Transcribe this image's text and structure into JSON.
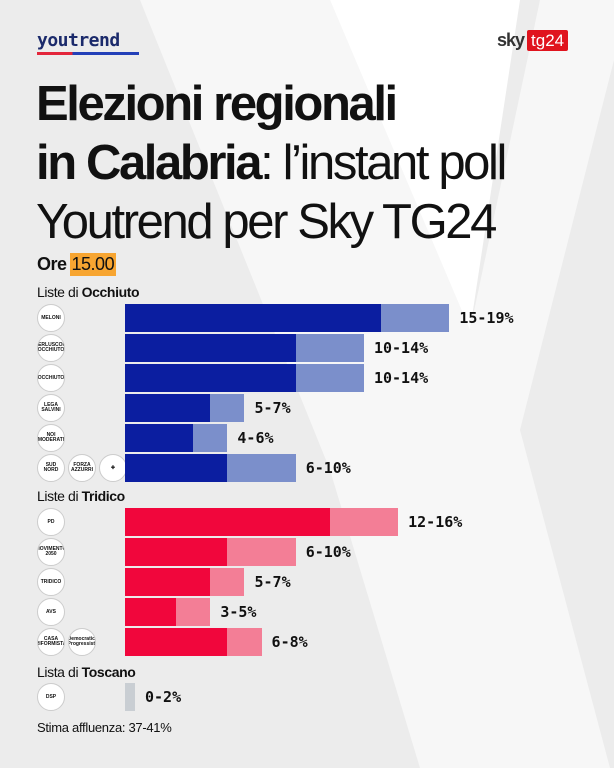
{
  "brand": {
    "left_logo": "youtrend",
    "right_logo_sky": "sky",
    "right_logo_tg": "tg24"
  },
  "title": {
    "line1": "Elezioni regionali",
    "line2_bold": "in Calabria",
    "line2_rest": ": l’instant poll",
    "line3": "Youtrend per Sky TG24"
  },
  "time": {
    "prefix": "Ore",
    "value": "15.00"
  },
  "turnout": "Stima affluenza: 37-41%",
  "colors": {
    "occhiuto_dark": "#0b1ea0",
    "occhiuto_light": "#7b8fcb",
    "tridico_dark": "#f1063c",
    "tridico_light": "#f37e96",
    "toscano": "#c9ced3",
    "time_highlight": "#f7a531"
  },
  "chart_data": {
    "type": "bar",
    "orientation": "horizontal",
    "style": "range bars (dark = lower bound, light = range up to upper bound)",
    "groups": [
      {
        "label_prefix": "Liste di",
        "label_bold": "Occhiuto",
        "color_key": "occhiuto",
        "items": [
          {
            "logos": [
              "Fratelli d'Italia – Meloni"
            ],
            "low": 15,
            "high": 19,
            "label": "15-19%"
          },
          {
            "logos": [
              "Forza Italia – Berlusconi – Occhiuto"
            ],
            "low": 10,
            "high": 14,
            "label": "10-14%"
          },
          {
            "logos": [
              "Occhiuto"
            ],
            "low": 10,
            "high": 14,
            "label": "10-14%"
          },
          {
            "logos": [
              "Lega – Salvini"
            ],
            "low": 5,
            "high": 7,
            "label": "5-7%"
          },
          {
            "logos": [
              "Noi Moderati"
            ],
            "low": 4,
            "high": 6,
            "label": "4-6%"
          },
          {
            "logos": [
              "Sud Nord",
              "Forza Azzurri",
              "UDC"
            ],
            "low": 6,
            "high": 10,
            "label": "6-10%"
          }
        ]
      },
      {
        "label_prefix": "Liste di",
        "label_bold": "Tridico",
        "color_key": "tridico",
        "items": [
          {
            "logos": [
              "PD"
            ],
            "low": 12,
            "high": 16,
            "label": "12-16%"
          },
          {
            "logos": [
              "Movimento 5 Stelle – 2050"
            ],
            "low": 6,
            "high": 10,
            "label": "6-10%"
          },
          {
            "logos": [
              "Tridico"
            ],
            "low": 5,
            "high": 7,
            "label": "5-7%"
          },
          {
            "logos": [
              "AVS"
            ],
            "low": 3,
            "high": 5,
            "label": "3-5%"
          },
          {
            "logos": [
              "Casa Riformista",
              "Democratici Progressisti"
            ],
            "low": 6,
            "high": 8,
            "label": "6-8%"
          }
        ]
      },
      {
        "label_prefix": "Lista di",
        "label_bold": "Toscano",
        "color_key": "toscano",
        "items": [
          {
            "logos": [
              "DSP"
            ],
            "low": 0,
            "high": 2,
            "label": "0-2%"
          }
        ]
      }
    ]
  },
  "logo_text": {
    "Fratelli d'Italia – Meloni": "MELONI",
    "Forza Italia – Berlusconi – Occhiuto": "BERLUSCONI OCCHIUTO",
    "Occhiuto": "OCCHIUTO",
    "Lega – Salvini": "LEGA SALVINI",
    "Noi Moderati": "NOI MODERATI",
    "Sud Nord": "SUD NORD",
    "Forza Azzurri": "FORZA AZZURRI",
    "UDC": "✚",
    "PD": "PD",
    "Movimento 5 Stelle – 2050": "MOVIMENTO 2050",
    "Tridico": "TRIDICO",
    "AVS": "AVS",
    "Casa Riformista": "CASA RIFORMISTA",
    "Democratici Progressisti": "Democratici Progressisti",
    "DSP": "DSP"
  }
}
